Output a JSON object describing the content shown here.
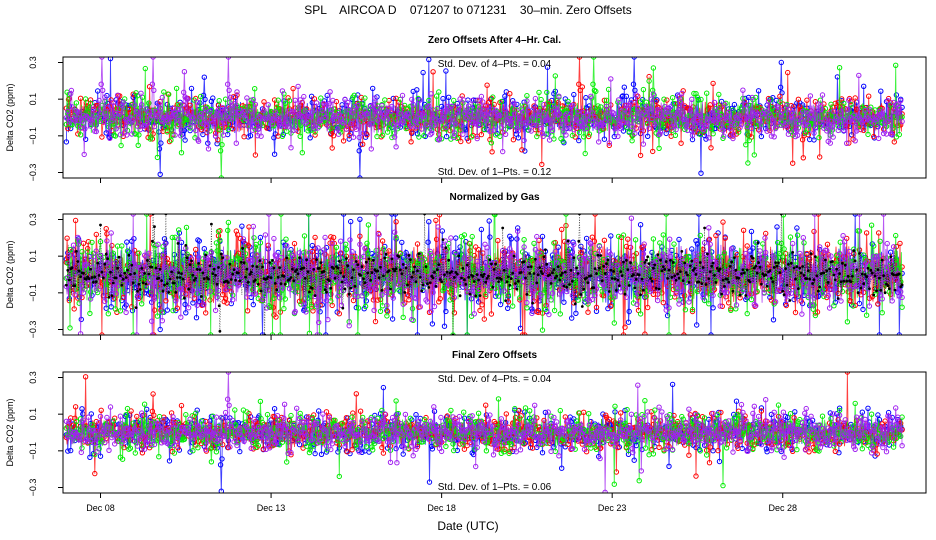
{
  "chart_data": {
    "type": "scatter",
    "title": "SPL    AIRCOA D    071207 to 071231    30–min. Zero Offsets",
    "xlabel": "Date (UTC)",
    "x_unit": "day of December 2007",
    "xlim": [
      6.9,
      32.2
    ],
    "x_ticks": [
      {
        "value": 8,
        "label": "Dec 08"
      },
      {
        "value": 13,
        "label": "Dec 13"
      },
      {
        "value": 18,
        "label": "Dec 18"
      },
      {
        "value": 23,
        "label": "Dec 23"
      },
      {
        "value": 28,
        "label": "Dec 28"
      }
    ],
    "data_start": 7.0,
    "data_end": 31.5,
    "interval_days": 0.020833,
    "series_colors": {
      "blue": "#0000ff",
      "red": "#ff0000",
      "green": "#00ee00",
      "purple": "#a020f0",
      "gas_normalized": "#000000"
    },
    "panels": [
      {
        "id": "panel-1",
        "title": "Zero Offsets After 4–Hr. Cal.",
        "ylabel": "Delta CO2 (ppm)",
        "ylim": [
          -0.33,
          0.33
        ],
        "y_ticks": [
          {
            "value": 0.3,
            "label": "0.3"
          },
          {
            "value": 0.1,
            "label": "0.1"
          },
          {
            "value": -0.1,
            "label": "−0.1"
          },
          {
            "value": -0.3,
            "label": "−0.3"
          }
        ],
        "annotations": {
          "top": "Std. Dev. of 4–Pts. = 0.04",
          "bottom": "Std. Dev. of 1–Pts. = 0.12"
        },
        "spread": 0.05,
        "include_gas_series": false,
        "events": [
          {
            "day": 8.05,
            "value": 0.33,
            "series": "purple"
          },
          {
            "day": 9.55,
            "value": 0.33,
            "series": "purple"
          },
          {
            "day": 9.75,
            "value": -0.31,
            "series": "blue"
          },
          {
            "day": 10.45,
            "value": 0.25,
            "series": "purple"
          },
          {
            "day": 11.05,
            "value": 0.22,
            "series": "blue"
          },
          {
            "day": 11.55,
            "value": -0.33,
            "series": "green"
          },
          {
            "day": 11.75,
            "value": 0.33,
            "series": "purple"
          },
          {
            "day": 13.1,
            "value": -0.2,
            "series": "blue"
          },
          {
            "day": 15.6,
            "value": -0.33,
            "series": "blue"
          },
          {
            "day": 22.05,
            "value": 0.33,
            "series": "red"
          },
          {
            "day": 22.45,
            "value": 0.33,
            "series": "green"
          },
          {
            "day": 23.65,
            "value": 0.33,
            "series": "blue"
          },
          {
            "day": 24.2,
            "value": 0.27,
            "series": "green"
          },
          {
            "day": 27.95,
            "value": 0.3,
            "series": "blue"
          },
          {
            "day": 28.6,
            "value": -0.22,
            "series": "red"
          }
        ]
      },
      {
        "id": "panel-2",
        "title": "Normalized by Gas",
        "ylabel": "Delta CO2 (ppm)",
        "ylim": [
          -0.33,
          0.33
        ],
        "y_ticks": [
          {
            "value": 0.3,
            "label": "0.3"
          },
          {
            "value": 0.1,
            "label": "0.1"
          },
          {
            "value": -0.1,
            "label": "−0.1"
          },
          {
            "value": -0.3,
            "label": "−0.3"
          }
        ],
        "annotations": {
          "top": "",
          "bottom": ""
        },
        "spread": 0.09,
        "include_gas_series": true,
        "events": [
          {
            "day": 8.0,
            "value": 0.27,
            "series": "gas_normalized"
          },
          {
            "day": 9.55,
            "value": 0.33,
            "series": "gas_normalized"
          },
          {
            "day": 11.5,
            "value": -0.31,
            "series": "gas_normalized"
          },
          {
            "day": 22.05,
            "value": 0.33,
            "series": "gas_normalized"
          },
          {
            "day": 22.5,
            "value": 0.33,
            "series": "red"
          },
          {
            "day": 9.75,
            "value": -0.3,
            "series": "blue"
          }
        ]
      },
      {
        "id": "panel-3",
        "title": "Final Zero Offsets",
        "ylabel": "Delta CO2 (ppm)",
        "ylim": [
          -0.33,
          0.33
        ],
        "y_ticks": [
          {
            "value": 0.3,
            "label": "0.3"
          },
          {
            "value": 0.1,
            "label": "0.1"
          },
          {
            "value": -0.1,
            "label": "−0.1"
          },
          {
            "value": -0.3,
            "label": "−0.3"
          }
        ],
        "annotations": {
          "top": "Std. Dev. of 4–Pts. = 0.04",
          "bottom": "Std. Dev. of 1–Pts. = 0.06"
        },
        "spread": 0.045,
        "include_gas_series": false,
        "events": [
          {
            "day": 9.55,
            "value": 0.21,
            "series": "red"
          },
          {
            "day": 11.55,
            "value": -0.32,
            "series": "blue"
          },
          {
            "day": 11.75,
            "value": 0.33,
            "series": "purple"
          },
          {
            "day": 11.25,
            "value": -0.16,
            "series": "green"
          }
        ]
      }
    ]
  }
}
